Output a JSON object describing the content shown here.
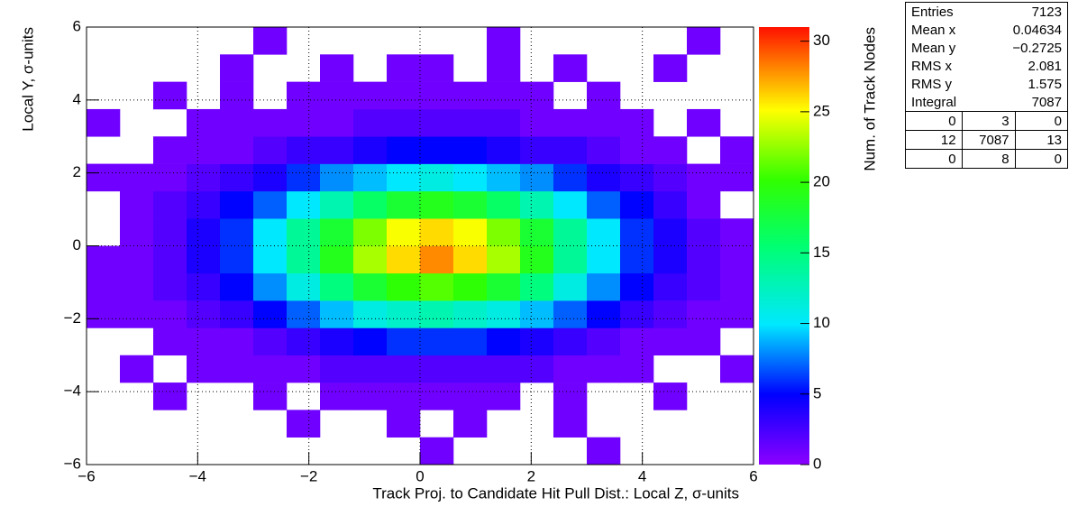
{
  "chart_data": {
    "type": "heatmap",
    "x_label": "Track Proj. to Candidate Hit Pull Dist.: Local Z, σ-units",
    "y_label": "Local Y, σ-units",
    "z_label": "Num. of Track Nodes",
    "xlim": [
      -6,
      6
    ],
    "ylim": [
      -6,
      6
    ],
    "zlim": [
      0,
      31
    ],
    "xticks": [
      {
        "value": -6,
        "label": "−6"
      },
      {
        "value": -4,
        "label": "−4"
      },
      {
        "value": -2,
        "label": "−2"
      },
      0,
      2,
      4,
      6
    ],
    "yticks": [
      {
        "value": -6,
        "label": "−6"
      },
      {
        "value": -4,
        "label": "−4"
      },
      {
        "value": -2,
        "label": "−2"
      },
      0,
      2,
      4,
      6
    ],
    "zticks": [
      0,
      5,
      10,
      15,
      20,
      25,
      30
    ],
    "grid": true,
    "z": [
      [
        0,
        0,
        0,
        0,
        0,
        0,
        0,
        0,
        0,
        0,
        1,
        0,
        0,
        0,
        0,
        1,
        0,
        0,
        0,
        0
      ],
      [
        0,
        0,
        0,
        0,
        0,
        0,
        1,
        0,
        0,
        1,
        0,
        1,
        0,
        0,
        1,
        0,
        0,
        0,
        0,
        0
      ],
      [
        0,
        0,
        1,
        0,
        0,
        1,
        0,
        1,
        1,
        1,
        1,
        1,
        1,
        0,
        1,
        0,
        0,
        1,
        0,
        0
      ],
      [
        0,
        1,
        0,
        1,
        1,
        1,
        1,
        2,
        2,
        2,
        2,
        2,
        2,
        2,
        1,
        1,
        1,
        0,
        0,
        1
      ],
      [
        0,
        0,
        1,
        1,
        1,
        2,
        3,
        4,
        5,
        6,
        6,
        6,
        5,
        4,
        3,
        2,
        1,
        1,
        1,
        0
      ],
      [
        1,
        1,
        1,
        2,
        3,
        5,
        7,
        9,
        11,
        12,
        13,
        12,
        11,
        9,
        7,
        5,
        3,
        2,
        1,
        1
      ],
      [
        1,
        1,
        2,
        3,
        5,
        8,
        11,
        15,
        18,
        20,
        21,
        20,
        18,
        15,
        11,
        8,
        5,
        3,
        2,
        1
      ],
      [
        1,
        1,
        2,
        4,
        6,
        10,
        14,
        19,
        23,
        26,
        28,
        26,
        23,
        19,
        14,
        10,
        6,
        4,
        2,
        1
      ],
      [
        0,
        1,
        2,
        4,
        6,
        10,
        14,
        18,
        22,
        25,
        26,
        25,
        22,
        18,
        14,
        10,
        6,
        4,
        2,
        1
      ],
      [
        0,
        1,
        2,
        3,
        5,
        7,
        10,
        13,
        16,
        18,
        19,
        18,
        16,
        13,
        10,
        7,
        5,
        3,
        1,
        0
      ],
      [
        1,
        1,
        1,
        2,
        3,
        4,
        6,
        8,
        9,
        10,
        11,
        10,
        9,
        8,
        6,
        4,
        3,
        2,
        1,
        1
      ],
      [
        0,
        0,
        1,
        1,
        1,
        2,
        3,
        3,
        4,
        5,
        5,
        5,
        4,
        3,
        3,
        2,
        1,
        1,
        0,
        1
      ],
      [
        1,
        0,
        0,
        1,
        1,
        1,
        1,
        1,
        2,
        2,
        2,
        2,
        2,
        1,
        1,
        1,
        1,
        0,
        1,
        0
      ],
      [
        0,
        0,
        1,
        0,
        1,
        0,
        1,
        1,
        1,
        1,
        1,
        1,
        1,
        1,
        0,
        1,
        0,
        0,
        0,
        0
      ],
      [
        0,
        0,
        0,
        0,
        1,
        0,
        0,
        1,
        0,
        1,
        1,
        0,
        1,
        0,
        1,
        0,
        0,
        1,
        0,
        0
      ],
      [
        0,
        0,
        0,
        0,
        0,
        1,
        0,
        0,
        0,
        0,
        0,
        0,
        1,
        0,
        0,
        0,
        0,
        0,
        1,
        0
      ]
    ]
  },
  "stats": {
    "rows": [
      [
        "Entries",
        "7123"
      ],
      [
        "Mean x",
        "0.04634"
      ],
      [
        "Mean y",
        "−0.2725"
      ],
      [
        "RMS x",
        "2.081"
      ],
      [
        "RMS y",
        "1.575"
      ],
      [
        "Integral",
        "7087"
      ]
    ],
    "grid": [
      [
        "0",
        "3",
        "0"
      ],
      [
        "12",
        "7087",
        "13"
      ],
      [
        "0",
        "8",
        "0"
      ]
    ]
  }
}
